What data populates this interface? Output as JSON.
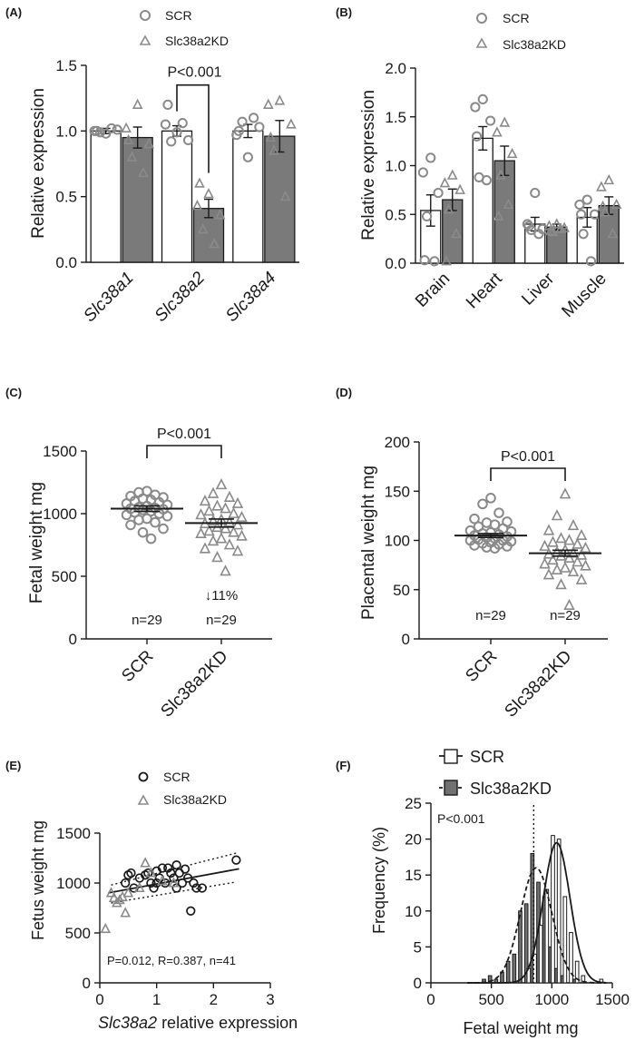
{
  "colors": {
    "axis": "#1a1a1a",
    "scr_marker": "#8a8a8a",
    "kd_marker": "#8a8a8a",
    "kd_bar": "#7a7a7a",
    "scr_bar": "#ffffff",
    "hist_scr": "#ffffff",
    "hist_kd": "#707070"
  },
  "chart_data": [
    {
      "panel": "(A)",
      "type": "bar",
      "legend": [
        "SCR",
        "Slc38a2KD"
      ],
      "ylabel": "Relative expression",
      "ylim": [
        0,
        1.5
      ],
      "yticks": [
        "0.0",
        "0.5",
        "1.0",
        "1.5"
      ],
      "categories": [
        "Slc38a1",
        "Slc38a2",
        "Slc38a4"
      ],
      "series": [
        {
          "name": "SCR",
          "values": [
            1.0,
            1.0,
            1.0
          ],
          "errors": [
            0.02,
            0.04,
            0.05
          ],
          "points": [
            [
              0.98,
              1.0,
              1.01,
              0.99,
              1.02,
              1.0
            ],
            [
              0.99,
              1.05,
              0.93,
              0.92,
              1.06,
              1.2
            ],
            [
              0.8,
              0.97,
              1.03,
              1.07,
              1.1,
              1.0
            ]
          ]
        },
        {
          "name": "Slc38a2KD",
          "values": [
            0.95,
            0.41,
            0.96
          ],
          "errors": [
            0.08,
            0.07,
            0.12
          ],
          "points": [
            [
              1.2,
              1.02,
              0.9,
              0.8,
              0.68,
              0.93
            ],
            [
              0.52,
              0.43,
              0.36,
              0.25,
              0.14,
              0.6
            ],
            [
              1.23,
              1.2,
              1.05,
              0.85,
              0.5,
              0.95
            ]
          ]
        }
      ],
      "annotation": "P<0.001"
    },
    {
      "panel": "(B)",
      "type": "bar",
      "legend": [
        "SCR",
        "Slc38a2KD"
      ],
      "ylabel": "Relative expression",
      "ylim": [
        0,
        2.0
      ],
      "yticks": [
        "0.0",
        "0.5",
        "1.0",
        "1.5",
        "2.0"
      ],
      "categories": [
        "Brain",
        "Heart",
        "Liver",
        "Muscle"
      ],
      "series": [
        {
          "name": "SCR",
          "values": [
            0.54,
            1.28,
            0.4,
            0.47
          ],
          "errors": [
            0.16,
            0.12,
            0.07,
            0.1
          ],
          "points": [
            [
              1.08,
              0.93,
              0.72,
              0.48,
              0.02,
              0.03
            ],
            [
              1.68,
              1.6,
              1.46,
              0.88,
              0.85,
              1.3
            ],
            [
              0.72,
              0.4,
              0.35,
              0.34,
              0.3,
              0.38
            ],
            [
              0.65,
              0.6,
              0.5,
              0.3,
              0.02,
              0.5
            ]
          ]
        },
        {
          "name": "Slc38a2KD",
          "values": [
            0.65,
            1.05,
            0.37,
            0.59
          ],
          "errors": [
            0.11,
            0.15,
            0.03,
            0.09
          ],
          "points": [
            [
              0.9,
              0.82,
              0.75,
              0.55,
              0.3,
              0.02
            ],
            [
              1.44,
              1.34,
              1.12,
              0.9,
              0.6,
              0.48
            ],
            [
              0.4,
              0.38,
              0.36,
              0.32,
              0.35,
              0.33
            ],
            [
              0.85,
              0.78,
              0.6,
              0.52,
              0.3,
              0.58
            ]
          ]
        }
      ]
    },
    {
      "panel": "(C)",
      "type": "scatter",
      "ylabel": "Fetal weight mg",
      "ylim": [
        0,
        1500
      ],
      "yticks": [
        "0",
        "500",
        "1000",
        "1500"
      ],
      "categories": [
        "SCR",
        "Slc38a2KD"
      ],
      "means": [
        1040,
        925
      ],
      "sem": [
        22,
        32
      ],
      "n_labels": [
        "n=29",
        "n=29"
      ],
      "annotation": "P<0.001",
      "note": "↓11%",
      "points": [
        [
          1180,
          1170,
          1150,
          1140,
          1130,
          1120,
          1110,
          1100,
          1090,
          1080,
          1070,
          1060,
          1050,
          1045,
          1040,
          1035,
          1030,
          1020,
          1010,
          1000,
          990,
          980,
          960,
          950,
          930,
          910,
          880,
          850,
          800
        ],
        [
          1230,
          1160,
          1130,
          1100,
          1080,
          1060,
          1040,
          1020,
          1000,
          990,
          970,
          950,
          940,
          930,
          920,
          910,
          890,
          880,
          860,
          850,
          840,
          820,
          800,
          780,
          750,
          720,
          700,
          650,
          540
        ]
      ]
    },
    {
      "panel": "(D)",
      "type": "scatter",
      "ylabel": "Placental weight mg",
      "ylim": [
        0,
        200
      ],
      "yticks": [
        "0",
        "50",
        "100",
        "150",
        "200"
      ],
      "categories": [
        "SCR",
        "Slc38a2KD"
      ],
      "means": [
        105,
        87
      ],
      "sem": [
        2,
        3
      ],
      "n_labels": [
        "n=29",
        "n=29"
      ],
      "annotation": "P<0.001",
      "points": [
        [
          143,
          137,
          128,
          122,
          119,
          118,
          116,
          114,
          112,
          110,
          109,
          108,
          107,
          106,
          105,
          104,
          103,
          102,
          101,
          100,
          100,
          99,
          98,
          97,
          96,
          95,
          94,
          93,
          92
        ],
        [
          147,
          125,
          115,
          110,
          105,
          102,
          100,
          98,
          96,
          94,
          92,
          90,
          88,
          87,
          86,
          85,
          84,
          82,
          80,
          78,
          76,
          74,
          72,
          70,
          68,
          65,
          60,
          55,
          34
        ]
      ]
    },
    {
      "panel": "(E)",
      "type": "scatter",
      "legend": [
        "SCR",
        "Slc38a2KD"
      ],
      "xlabel": "Slc38a2 relative expression",
      "xlabel_italic": "Slc38a2",
      "xlabel_rest": " relative expression",
      "ylabel": "Fetus weight mg",
      "xlim": [
        0,
        3
      ],
      "ylim": [
        0,
        1500
      ],
      "xticks": [
        "0",
        "1",
        "2",
        "3"
      ],
      "yticks": [
        "0",
        "500",
        "1000",
        "1500"
      ],
      "fit": {
        "slope": 105,
        "intercept": 885
      },
      "ci_upper": [
        [
          0.2,
          980
        ],
        [
          2.4,
          1300
        ]
      ],
      "ci_lower": [
        [
          0.2,
          800
        ],
        [
          2.4,
          1010
        ]
      ],
      "annotation": "P=0.012, R=0.387, n=41",
      "series": [
        {
          "name": "SCR",
          "points": [
            [
              0.45,
              1000
            ],
            [
              0.5,
              1080
            ],
            [
              0.55,
              1100
            ],
            [
              0.6,
              950
            ],
            [
              0.7,
              1050
            ],
            [
              0.8,
              1080
            ],
            [
              0.85,
              1100
            ],
            [
              0.9,
              1000
            ],
            [
              0.95,
              950
            ],
            [
              1.0,
              1000
            ],
            [
              1.0,
              1120
            ],
            [
              1.05,
              1050
            ],
            [
              1.1,
              1150
            ],
            [
              1.15,
              1000
            ],
            [
              1.2,
              1150
            ],
            [
              1.25,
              1100
            ],
            [
              1.3,
              1050
            ],
            [
              1.35,
              950
            ],
            [
              1.35,
              1180
            ],
            [
              1.4,
              1100
            ],
            [
              1.45,
              1000
            ],
            [
              1.5,
              1140
            ],
            [
              1.55,
              1050
            ],
            [
              1.6,
              720
            ],
            [
              1.65,
              1000
            ],
            [
              1.7,
              950
            ],
            [
              1.8,
              950
            ],
            [
              2.4,
              1230
            ]
          ]
        },
        {
          "name": "Slc38a2KD",
          "points": [
            [
              0.1,
              540
            ],
            [
              0.2,
              900
            ],
            [
              0.25,
              850
            ],
            [
              0.3,
              800
            ],
            [
              0.35,
              830
            ],
            [
              0.4,
              860
            ],
            [
              0.45,
              700
            ],
            [
              0.5,
              900
            ],
            [
              0.7,
              950
            ],
            [
              0.8,
              1200
            ],
            [
              0.9,
              1100
            ],
            [
              1.1,
              1020
            ],
            [
              1.3,
              1000
            ]
          ]
        }
      ]
    },
    {
      "panel": "(F)",
      "type": "histogram",
      "legend": [
        "SCR",
        "Slc38a2KD"
      ],
      "xlabel": "Fetal weight mg",
      "ylabel": "Frequency (%)",
      "xlim": [
        0,
        1500
      ],
      "ylim": [
        0,
        25
      ],
      "xticks": [
        "0",
        "500",
        "1000",
        "1500"
      ],
      "yticks": [
        "0",
        "5",
        "10",
        "15",
        "20",
        "25"
      ],
      "bin_width": 50,
      "cutoff_x": 850,
      "annotation": "P<0.001",
      "scr_bins": [
        [
          800,
          2
        ],
        [
          850,
          4
        ],
        [
          900,
          8
        ],
        [
          950,
          13
        ],
        [
          1000,
          20.5
        ],
        [
          1050,
          20
        ],
        [
          1100,
          12
        ],
        [
          1150,
          7
        ],
        [
          1200,
          3
        ],
        [
          1250,
          1
        ],
        [
          1400,
          0.5
        ]
      ],
      "kd_bins": [
        [
          450,
          0.5
        ],
        [
          500,
          1
        ],
        [
          550,
          0.5
        ],
        [
          600,
          1.5
        ],
        [
          650,
          3
        ],
        [
          700,
          4
        ],
        [
          750,
          10
        ],
        [
          800,
          11
        ],
        [
          850,
          18
        ],
        [
          900,
          14
        ],
        [
          950,
          12
        ],
        [
          1000,
          5
        ],
        [
          1050,
          2
        ],
        [
          1100,
          1
        ],
        [
          1200,
          0.5
        ]
      ],
      "scr_fit": {
        "mean": 1040,
        "sd": 110,
        "peak": 19.5
      },
      "kd_fit": {
        "mean": 870,
        "sd": 130,
        "peak": 16
      }
    }
  ]
}
